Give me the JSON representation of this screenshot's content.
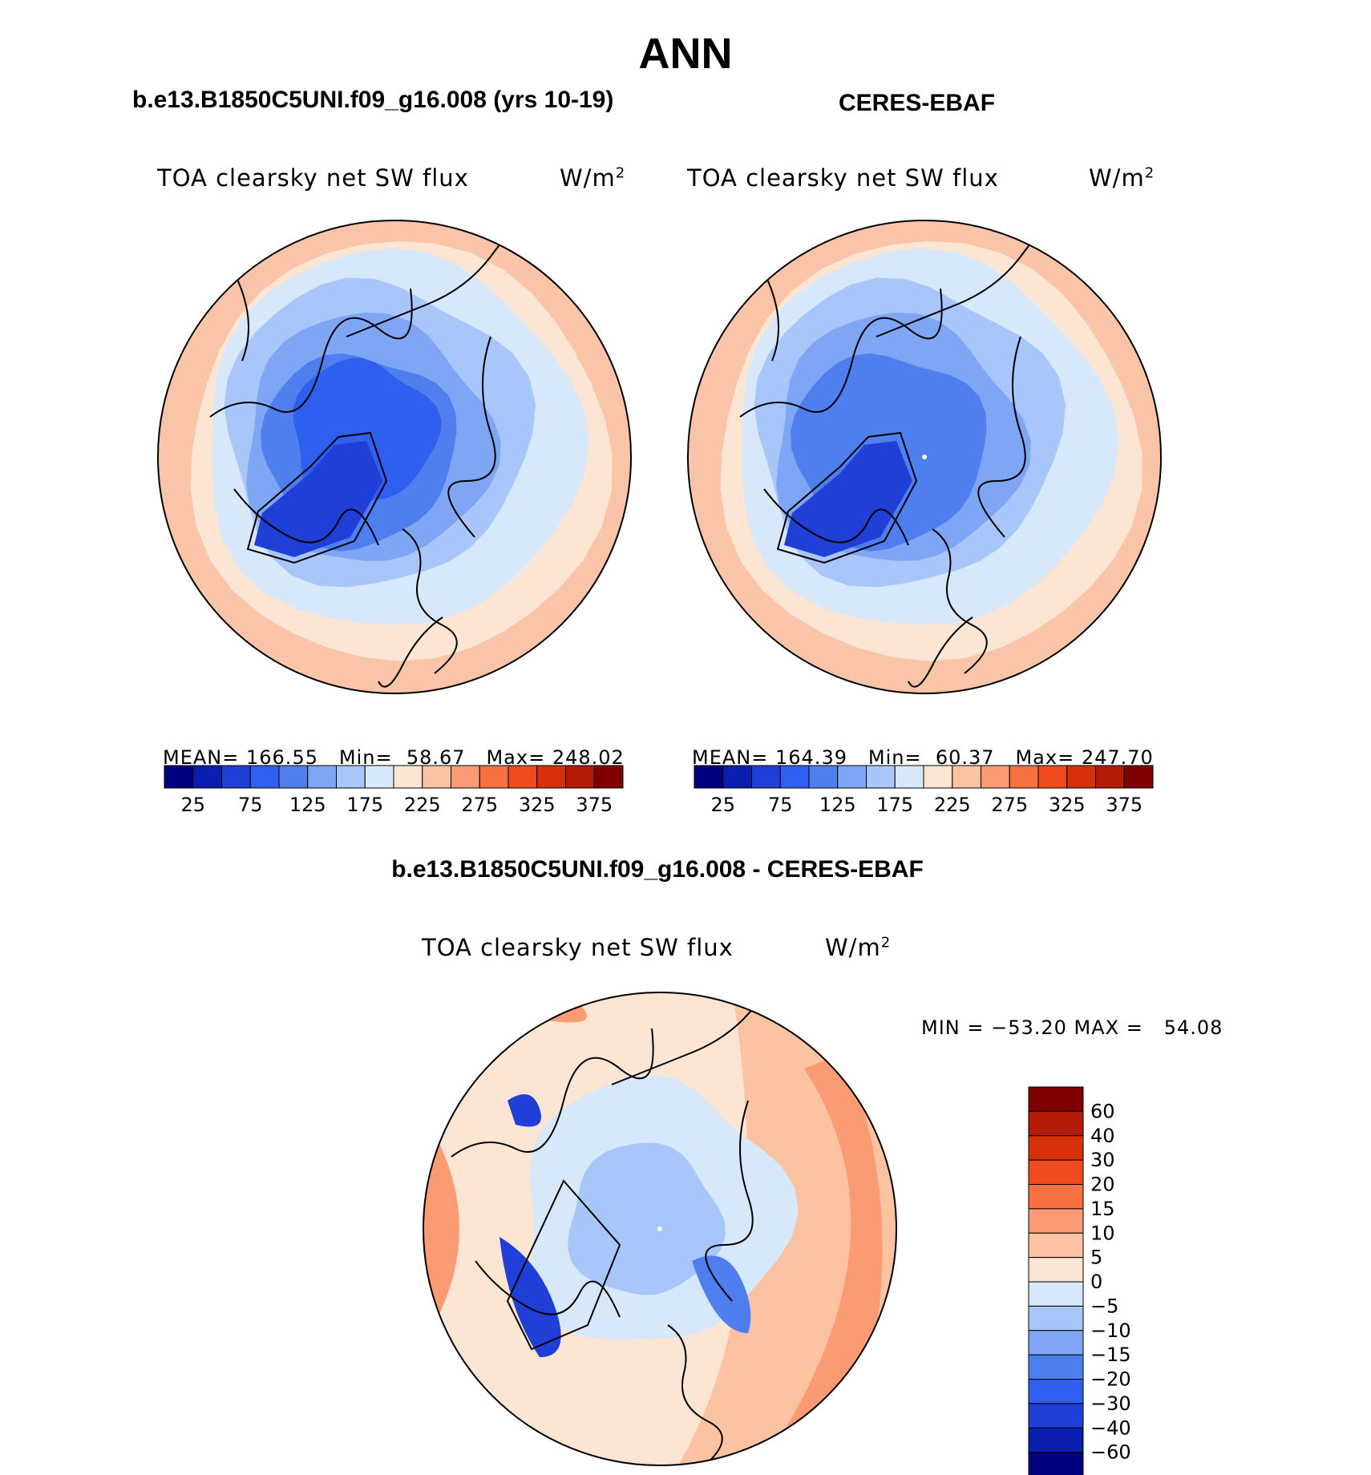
{
  "page_title": "ANN",
  "panels": [
    {
      "title": "b.e13.B1850C5UNI.f09_g16.008 (yrs 10-19)",
      "variable": "TOA clearsky net SW flux",
      "units": "W/m",
      "units_sup": "2",
      "stats": {
        "mean_label": "MEAN=",
        "mean": "166.55",
        "min_label": "Min=",
        "min": "58.67",
        "max_label": "Max=",
        "max": "248.02"
      }
    },
    {
      "title": "CERES-EBAF",
      "variable": "TOA clearsky net SW flux",
      "units": "W/m",
      "units_sup": "2",
      "stats": {
        "mean_label": "MEAN=",
        "mean": "164.39",
        "min_label": "Min=",
        "min": "60.37",
        "max_label": "Max=",
        "max": "247.70"
      }
    }
  ],
  "diff_panel": {
    "title": "b.e13.B1850C5UNI.f09_g16.008 - CERES-EBAF",
    "variable": "TOA clearsky net SW flux",
    "units": "W/m",
    "units_sup": "2",
    "minmax": "MIN = −53.20 MAX =   54.08"
  },
  "abs_colorbar": {
    "tick_labels": [
      "25",
      "75",
      "125",
      "175",
      "225",
      "275",
      "325",
      "375"
    ],
    "colors": [
      "#00007f",
      "#0a1fb0",
      "#1f3fd6",
      "#2f5fef",
      "#4f7fef",
      "#7fa5f5",
      "#a8c6fa",
      "#d7e8fb",
      "#fde5d3",
      "#fcc3a3",
      "#fb9b73",
      "#f7703f",
      "#f04a1f",
      "#d9300c",
      "#b41b06",
      "#7f0000"
    ]
  },
  "diff_colorbar": {
    "tick_labels": [
      "60",
      "40",
      "30",
      "20",
      "15",
      "10",
      "5",
      "0",
      "−5",
      "−10",
      "−15",
      "−20",
      "−30",
      "−40",
      "−60"
    ],
    "colors": [
      "#7f0000",
      "#b41b06",
      "#d9300c",
      "#f04a1f",
      "#f7703f",
      "#fb9b73",
      "#fcc3a3",
      "#fde5d3",
      "#d7e8fb",
      "#a8c6fa",
      "#7fa5f5",
      "#4f7fef",
      "#2f5fef",
      "#1f3fd6",
      "#0a1fb0",
      "#00007f"
    ]
  },
  "map_colors": {
    "ring_outer": "#f9c4a8",
    "ring_mid": "#fde5d3",
    "l1": "#d7e8fb",
    "l2": "#a8c6fa",
    "l3": "#7fa5f5",
    "l4": "#4f7fef",
    "l5": "#2f5fef",
    "l6": "#1f3fd6",
    "diff_pos1": "#fde5d3",
    "diff_pos2": "#fcc3a3",
    "diff_pos3": "#fb9b73",
    "diff_neg1": "#d7e8fb",
    "diff_neg2": "#a8c6fa",
    "diff_neg3": "#4f7fef",
    "diff_neg4": "#1f3fd6"
  }
}
